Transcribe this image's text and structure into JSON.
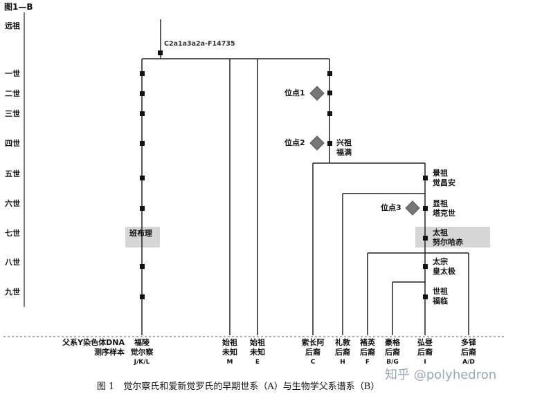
{
  "figure_label": "图1—B",
  "root_label": "远祖",
  "haplogroup": "C2a1a3a2a-F14735",
  "generations": [
    "一世",
    "二世",
    "三世",
    "四世",
    "五世",
    "六世",
    "七世",
    "八世",
    "九世"
  ],
  "sites": [
    "位点1",
    "位点2",
    "位点3"
  ],
  "persons": {
    "xingzu": [
      "兴祖",
      "福满"
    ],
    "jingzu": [
      "景祖",
      "觉昌安"
    ],
    "xianzu": [
      "显祖",
      "塔克世"
    ],
    "taizu": [
      "太祖",
      "努尔哈赤"
    ],
    "taizong": [
      "太宗",
      "皇太极"
    ],
    "shizu": [
      "世祖",
      "福临"
    ],
    "banbuli": "班布理"
  },
  "sample_header": [
    "父系Y染色体DNA",
    "测序样本"
  ],
  "samples": [
    {
      "l1": "福陵",
      "l2": "觉尔察",
      "code": "J/K/L"
    },
    {
      "l1": "始祖",
      "l2": "未知",
      "code": "M"
    },
    {
      "l1": "始祖",
      "l2": "未知",
      "code": "E"
    },
    {
      "l1": "索长阿",
      "l2": "后裔",
      "code": "C"
    },
    {
      "l1": "礼敦",
      "l2": "后裔",
      "code": "H"
    },
    {
      "l1": "褚英",
      "l2": "后裔",
      "code": "F"
    },
    {
      "l1": "豪格",
      "l2": "后裔",
      "code": "B/G"
    },
    {
      "l1": "弘昼",
      "l2": "后裔",
      "code": "I"
    },
    {
      "l1": "多铎",
      "l2": "后裔",
      "code": "A/D"
    }
  ],
  "caption": "图 1　觉尔察氏和爱新觉罗氏的早期世系（A）与生物学父系谱系（B）",
  "watermark": "知乎 @polyhedron"
}
